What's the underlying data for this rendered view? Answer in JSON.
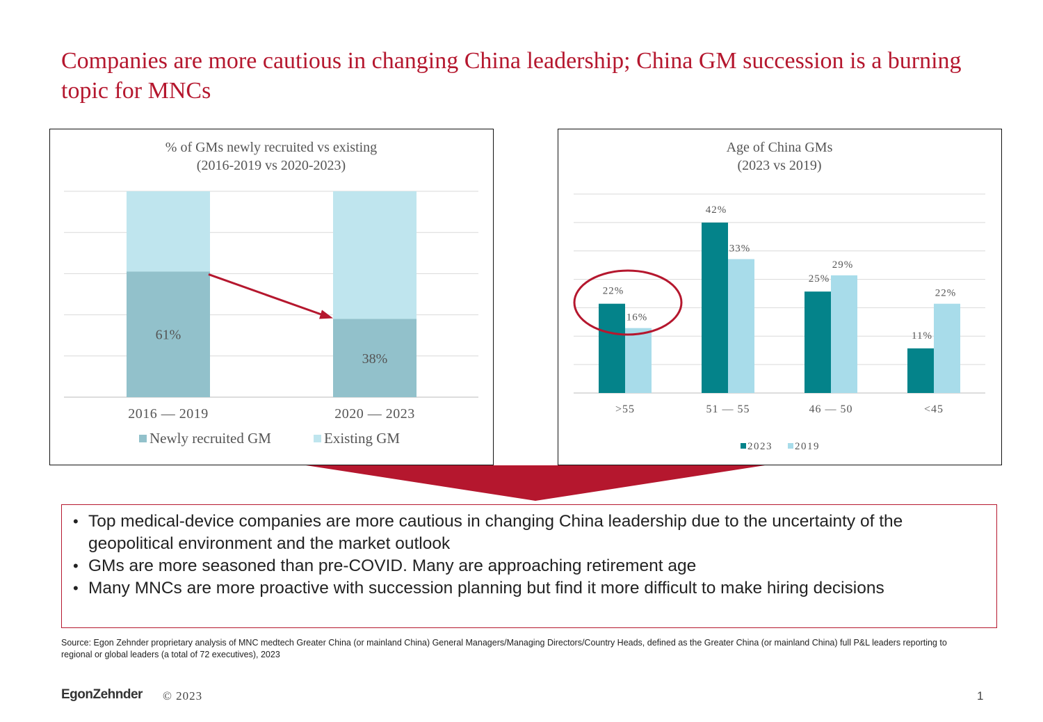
{
  "title": "Companies are more cautious in changing China leadership; China GM succession is a burning topic for MNCs",
  "colors": {
    "brand_red": "#b5172e",
    "newly_recruited": "#92c1cb",
    "existing": "#bfe5ee",
    "series_2023": "#04838a",
    "series_2019": "#a8dcea"
  },
  "chart_data": [
    {
      "type": "bar",
      "stacked": true,
      "title": "% of GMs newly recruited vs existing (2016-2019 vs 2020-2023)",
      "categories": [
        "2016 — 2019",
        "2020 — 2023"
      ],
      "series": [
        {
          "name": "Newly recruited GM",
          "values": [
            61,
            38
          ],
          "labels": [
            "61%",
            "38%"
          ]
        },
        {
          "name": "Existing GM",
          "values": [
            39,
            62
          ]
        }
      ],
      "ylim": [
        0,
        100
      ],
      "grid": true,
      "legend": "bottom",
      "annotation": "arrow from 2016 — 2019 newly recruited to 2020 — 2023 newly recruited"
    },
    {
      "type": "bar",
      "title": "Age of China GMs (2023 vs 2019)",
      "categories": [
        ">55",
        "51 — 55",
        "46 — 50",
        "<45"
      ],
      "series": [
        {
          "name": "2023",
          "values": [
            22,
            42,
            25,
            11
          ],
          "labels": [
            "22%",
            "42%",
            "25%",
            "11%"
          ]
        },
        {
          "name": "2019",
          "values": [
            16,
            33,
            29,
            22
          ],
          "labels": [
            "16%",
            "33%",
            "29%",
            "22%"
          ]
        }
      ],
      "ylim": [
        0,
        45
      ],
      "grid": true,
      "legend": "bottom",
      "annotation": "circle around >55 group"
    }
  ],
  "bullets": [
    "Top medical-device companies are more cautious in changing China leadership due to the uncertainty of the geopolitical environment and the market outlook",
    "GMs are more seasoned than pre-COVID. Many are approaching retirement age",
    "Many MNCs are more proactive with succession planning but find it more difficult to make hiring decisions"
  ],
  "source": "Source: Egon Zehnder proprietary analysis of MNC medtech Greater China (or mainland China) General Managers/Managing Directors/Country Heads, defined as the Greater China (or mainland China) full P&L leaders reporting to regional or global leaders (a total of 72 executives), 2023",
  "footer": {
    "logo": "EgonZehnder",
    "copyright": "© 2023",
    "page_number": "1"
  }
}
